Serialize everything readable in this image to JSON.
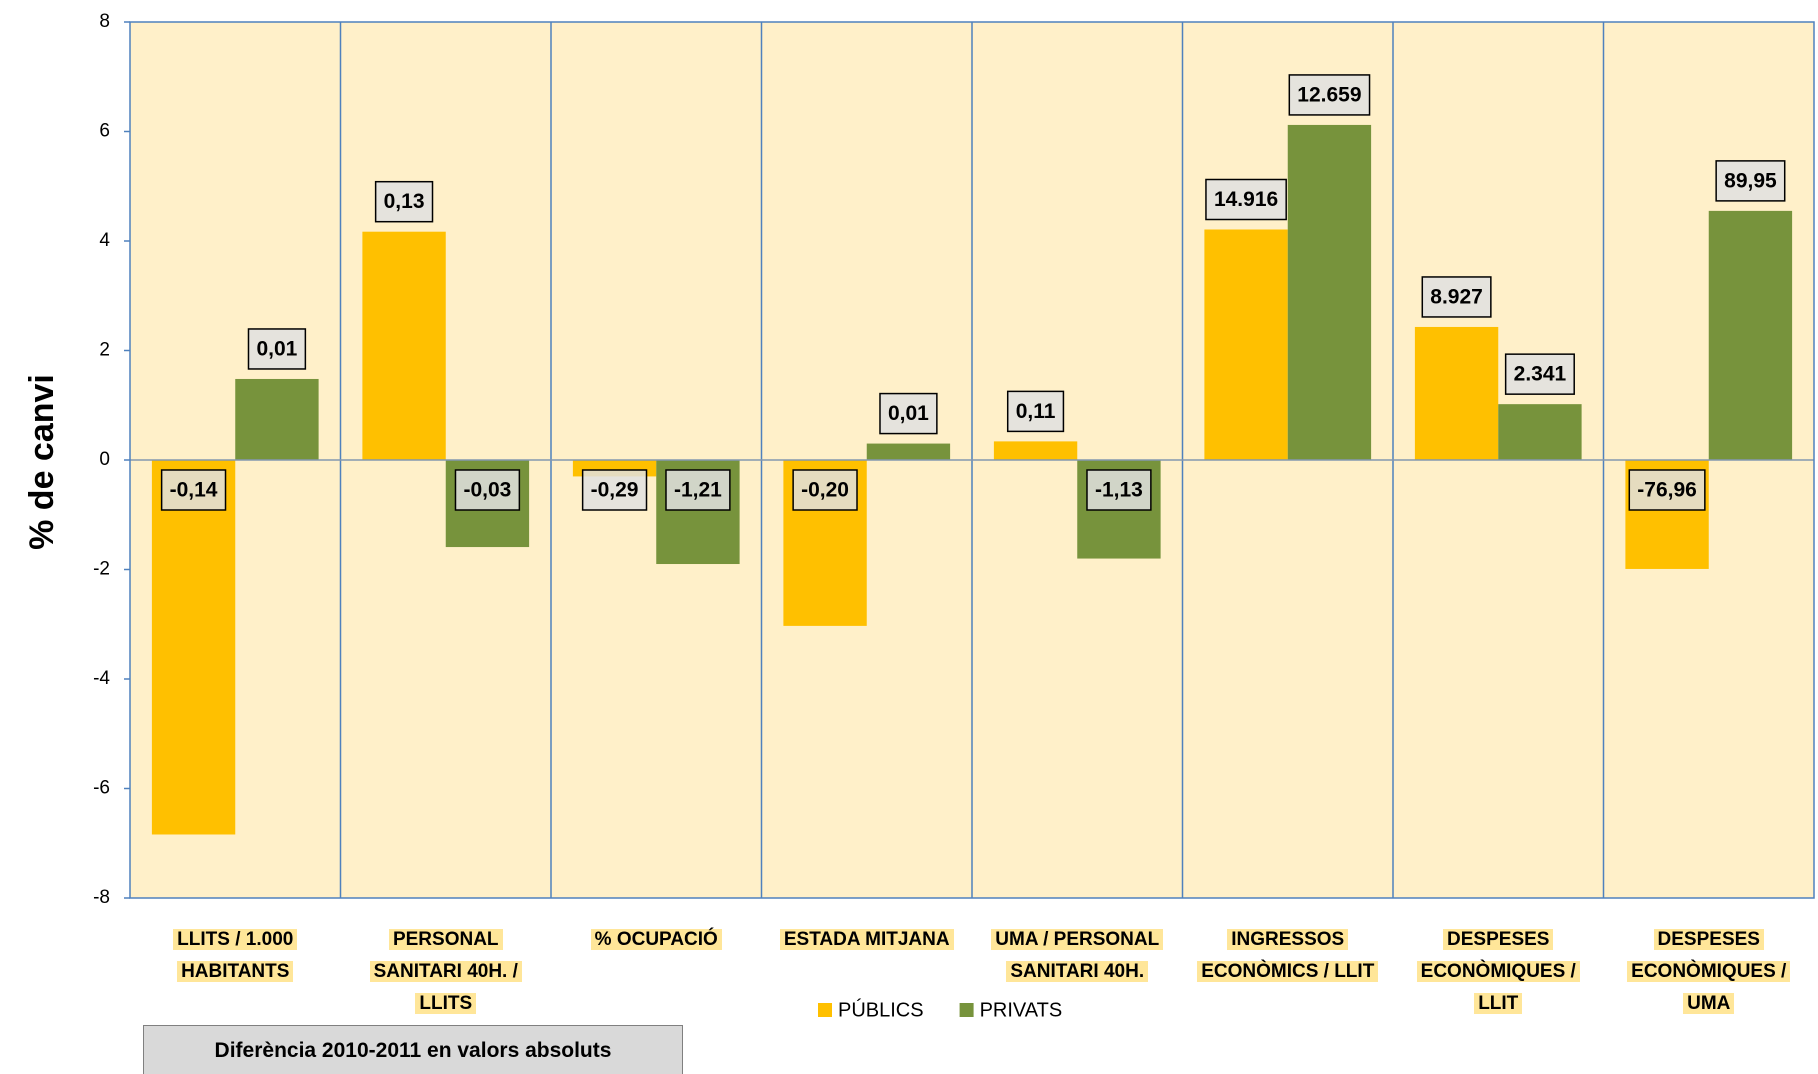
{
  "chart_data": {
    "type": "bar",
    "y_label": "% de canvi",
    "annotation": "Diferència  2010-2011 en valors absoluts",
    "categories": [
      "LLITS / 1.000 HABITANTS",
      "PERSONAL SANITARI 40H. / LLITS",
      "% OCUPACIÓ",
      "ESTADA MITJANA",
      "UMA / PERSONAL SANITARI 40H.",
      "INGRESSOS ECONÒMICS / LLIT",
      "DESPESES ECONÒMIQUES / LLIT",
      "DESPESES ECONÒMIQUES / UMA"
    ],
    "series": [
      {
        "name": "PÚBLICS",
        "color": "#ffc000",
        "values": [
          -6.84,
          4.17,
          -0.3,
          -3.03,
          0.34,
          4.21,
          2.43,
          -1.99
        ],
        "differences": [
          "-0,14",
          "0,13",
          "-0,29",
          "-0,20",
          "0,11",
          "14.916",
          "8.927",
          "-76,96"
        ]
      },
      {
        "name": "PRIVATS",
        "color": "#77933c",
        "values": [
          1.48,
          -1.59,
          -1.9,
          0.3,
          -1.8,
          6.12,
          1.02,
          4.55
        ],
        "differences": [
          "0,01",
          "-0,03",
          "-1,21",
          "0,01",
          "-1,13",
          "12.659",
          "2.341",
          "89,95"
        ]
      }
    ],
    "ylim": [
      -8,
      8
    ],
    "yticks": [
      -8,
      -6,
      -4,
      -2,
      0,
      2,
      4,
      6,
      8
    ],
    "grid": false
  }
}
